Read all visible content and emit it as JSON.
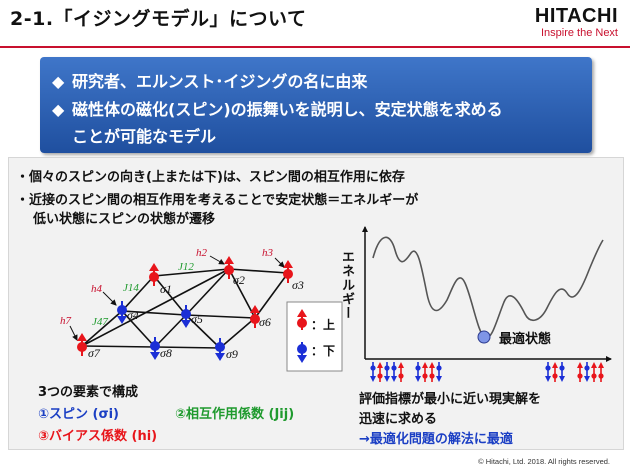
{
  "header": {
    "title": "2-1.「イジングモデル」について",
    "logo_name": "HITACHI",
    "logo_tagline": "Inspire the Next"
  },
  "blue_box": {
    "bullet_glyph": "◆",
    "line1": "研究者、エルンスト･イジングの名に由来",
    "line2": "磁性体の磁化(スピン)の振舞いを説明し、安定状態を求める",
    "line3": "ことが可能なモデル"
  },
  "main": {
    "bullet_glyph": "・",
    "bullet1": "個々のスピンの向き(上または下)は、スピン間の相互作用に依存",
    "bullet2_line1": "近接のスピン間の相互作用を考えることで安定状態＝エネルギーが",
    "bullet2_line2": "低い状態にスピンの状態が遷移"
  },
  "graph": {
    "nodes": [
      {
        "id": "σ1",
        "state": "up"
      },
      {
        "id": "σ2",
        "state": "up"
      },
      {
        "id": "σ3",
        "state": "up"
      },
      {
        "id": "σ4",
        "state": "down"
      },
      {
        "id": "σ5",
        "state": "down"
      },
      {
        "id": "σ6",
        "state": "up"
      },
      {
        "id": "σ7",
        "state": "up"
      },
      {
        "id": "σ8",
        "state": "down"
      },
      {
        "id": "σ9",
        "state": "down"
      }
    ],
    "bias_labels": [
      "h2",
      "h3",
      "h4",
      "h7"
    ],
    "weight_labels": [
      "J12",
      "J14",
      "J47"
    ],
    "legend": {
      "up_label": "：上",
      "down_label": "：下"
    }
  },
  "elements": {
    "heading": "3つの要素で構成",
    "item1": "①スピン (σi)",
    "item2": "②相互作用係数 (Jij)",
    "item3": "③バイアス係数 (hi)"
  },
  "energy_chart": {
    "ylabel": "エネルギー",
    "min_label": "最適状態",
    "desc_line1": "評価指標が最小に近い現実解を",
    "desc_line2": "迅速に求める",
    "desc_line3": "→最適化問題の解法に最適"
  },
  "colors": {
    "accent_red": "#c8102e",
    "box_blue": "#2a5db0",
    "spin_up": "#e8151b",
    "spin_down": "#1b2fd6",
    "green": "#1f9a2e",
    "min_point": "#7f95e6"
  },
  "footer": {
    "copyright": "© Hitachi, Ltd. 2018. All rights reserved."
  }
}
